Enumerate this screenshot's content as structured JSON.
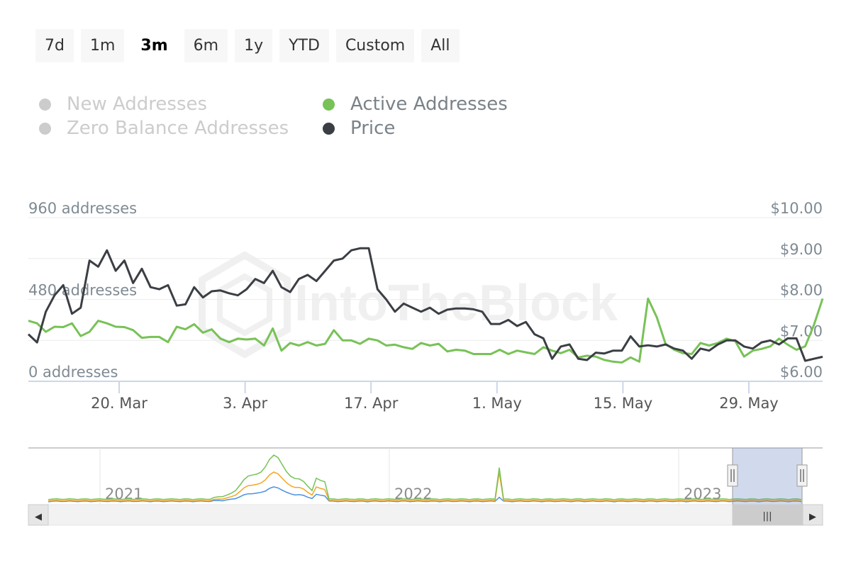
{
  "range_selector": {
    "buttons": [
      "7d",
      "1m",
      "3m",
      "6m",
      "1y",
      "YTD",
      "Custom",
      "All"
    ],
    "active": "3m"
  },
  "legend": {
    "items": [
      {
        "label": "New Addresses",
        "visible": false,
        "color": "#4a90e2"
      },
      {
        "label": "Zero Balance Addresses",
        "visible": false,
        "color": "#f5a623"
      },
      {
        "label": "Active Addresses",
        "visible": true,
        "color": "#78c257"
      },
      {
        "label": "Price",
        "visible": true,
        "color": "#3b3f44"
      }
    ]
  },
  "watermark": "IntoTheBlock",
  "chart_data": {
    "type": "line",
    "x_date_labels": [
      "20. Mar",
      "3. Apr",
      "17. Apr",
      "1. May",
      "15. May",
      "29. May"
    ],
    "left_axis": {
      "ticks": [
        "0 addresses",
        "480 addresses",
        "960 addresses"
      ],
      "range": [
        0,
        960
      ]
    },
    "right_axis": {
      "ticks": [
        "$6.00",
        "$7.00",
        "$8.00",
        "$9.00",
        "$10.00"
      ],
      "range": [
        6,
        10
      ]
    },
    "grid": true,
    "series": [
      {
        "name": "Active Addresses",
        "axis": "left",
        "color": "#78c257",
        "values": [
          355,
          340,
          290,
          320,
          318,
          340,
          265,
          290,
          355,
          340,
          320,
          318,
          300,
          255,
          260,
          260,
          230,
          320,
          305,
          335,
          285,
          305,
          250,
          230,
          250,
          245,
          250,
          210,
          310,
          180,
          225,
          210,
          230,
          210,
          220,
          300,
          240,
          240,
          220,
          250,
          240,
          210,
          215,
          200,
          190,
          225,
          210,
          220,
          175,
          185,
          180,
          160,
          160,
          160,
          185,
          160,
          180,
          170,
          160,
          200,
          180,
          165,
          185,
          140,
          150,
          145,
          125,
          115,
          110,
          140,
          115,
          485,
          375,
          220,
          185,
          165,
          160,
          225,
          210,
          225,
          250,
          235,
          145,
          180,
          190,
          205,
          250,
          215,
          185,
          205,
          330,
          485
        ]
      },
      {
        "name": "Price",
        "axis": "right",
        "color": "#3b3f44",
        "values": [
          7.15,
          6.95,
          7.7,
          8.1,
          8.35,
          7.65,
          7.8,
          8.95,
          8.8,
          9.2,
          8.7,
          8.95,
          8.4,
          8.75,
          8.3,
          8.25,
          8.35,
          7.85,
          7.88,
          8.3,
          8.05,
          8.2,
          8.22,
          8.15,
          8.1,
          8.25,
          8.5,
          8.4,
          8.7,
          8.3,
          8.18,
          8.5,
          8.6,
          8.45,
          8.7,
          8.95,
          9.0,
          9.2,
          9.25,
          9.25,
          8.25,
          8.0,
          7.7,
          7.9,
          7.8,
          7.7,
          7.8,
          7.65,
          7.75,
          7.78,
          7.78,
          7.76,
          7.7,
          7.4,
          7.4,
          7.5,
          7.35,
          7.45,
          7.15,
          7.05,
          6.55,
          6.85,
          6.9,
          6.55,
          6.52,
          6.7,
          6.68,
          6.75,
          6.75,
          7.1,
          6.85,
          6.88,
          6.85,
          6.9,
          6.8,
          6.75,
          6.55,
          6.8,
          6.75,
          6.9,
          7.0,
          7.0,
          6.85,
          6.8,
          6.95,
          7.0,
          6.9,
          7.05,
          7.05,
          6.5,
          6.55,
          6.6
        ]
      }
    ]
  },
  "navigator": {
    "year_labels": [
      "2021",
      "2022",
      "2023"
    ],
    "scroll_handle": "|||",
    "scroll_left_arrow": "◀",
    "scroll_right_arrow": "▶"
  }
}
